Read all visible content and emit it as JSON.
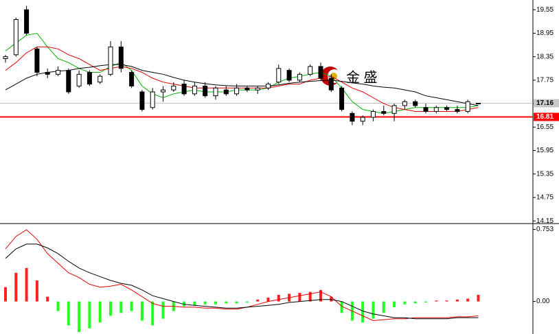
{
  "chart_data": [
    {
      "type": "candlestick",
      "watermark": "金 盛",
      "ylim": [
        14.1,
        19.8
      ],
      "yticks": [
        19.55,
        18.95,
        18.35,
        17.75,
        17.15,
        16.55,
        15.95,
        15.35,
        14.75,
        14.15
      ],
      "open": [
        18.3,
        18.4,
        19.55,
        18.55,
        17.95,
        17.9,
        18.0,
        17.6,
        17.95,
        17.7,
        17.9,
        18.6,
        17.95,
        17.45,
        17.05,
        17.45,
        17.5,
        17.65,
        17.4,
        17.6,
        17.35,
        17.5,
        17.4,
        17.55,
        17.5,
        17.55,
        17.7,
        18.0,
        17.75,
        17.9,
        18.1,
        17.8,
        17.55,
        16.9,
        16.7,
        16.8,
        16.95,
        16.9,
        17.1,
        17.2,
        17.05,
        16.95,
        17.05,
        17.0,
        16.95,
        17.16
      ],
      "high": [
        18.4,
        19.35,
        19.65,
        18.6,
        18.05,
        18.1,
        18.05,
        18.0,
        18.0,
        17.9,
        18.75,
        18.75,
        18.0,
        17.5,
        17.55,
        17.6,
        17.7,
        17.75,
        17.7,
        17.7,
        17.6,
        17.6,
        17.65,
        17.6,
        17.6,
        17.7,
        18.15,
        18.05,
        17.95,
        18.15,
        18.2,
        17.9,
        17.6,
        16.95,
        16.85,
        17.0,
        17.1,
        17.15,
        17.25,
        17.25,
        17.15,
        17.1,
        17.1,
        17.1,
        17.25,
        17.16
      ],
      "low": [
        18.2,
        18.35,
        18.9,
        17.85,
        17.8,
        17.85,
        17.4,
        17.55,
        17.6,
        17.65,
        17.85,
        17.95,
        17.55,
        16.95,
        17.0,
        17.2,
        17.45,
        17.35,
        17.35,
        17.3,
        17.25,
        17.35,
        17.35,
        17.45,
        17.4,
        17.5,
        17.65,
        17.7,
        17.7,
        17.85,
        17.75,
        17.45,
        16.95,
        16.6,
        16.6,
        16.7,
        16.85,
        16.7,
        17.0,
        17.05,
        16.9,
        16.9,
        16.95,
        16.9,
        16.9,
        17.16
      ],
      "close": [
        18.35,
        19.3,
        18.95,
        17.95,
        17.9,
        18.0,
        17.45,
        17.9,
        17.65,
        17.85,
        18.6,
        18.05,
        17.6,
        17.0,
        17.45,
        17.5,
        17.6,
        17.4,
        17.6,
        17.35,
        17.55,
        17.4,
        17.55,
        17.5,
        17.55,
        17.65,
        18.05,
        17.75,
        17.9,
        18.1,
        17.8,
        17.5,
        17.0,
        16.7,
        16.8,
        16.95,
        16.9,
        17.1,
        17.2,
        17.1,
        16.95,
        17.05,
        17.0,
        16.95,
        17.2,
        17.16
      ],
      "series": [
        {
          "color": "#00b000",
          "values": [
            18.5,
            18.7,
            18.9,
            18.95,
            18.6,
            18.3,
            18.2,
            18.05,
            17.95,
            17.95,
            18.1,
            18.2,
            18.0,
            17.6,
            17.4,
            17.3,
            17.4,
            17.45,
            17.5,
            17.45,
            17.45,
            17.45,
            17.5,
            17.5,
            17.5,
            17.55,
            17.7,
            17.8,
            17.85,
            17.9,
            17.95,
            17.85,
            17.55,
            17.2,
            17.0,
            16.95,
            16.9,
            16.95,
            17.0,
            17.05,
            17.05,
            17.05,
            17.05,
            17.05,
            17.05,
            17.1
          ]
        },
        {
          "color": "#e00000",
          "values": [
            18.0,
            18.2,
            18.45,
            18.6,
            18.6,
            18.55,
            18.4,
            18.3,
            18.15,
            18.0,
            18.05,
            18.1,
            18.05,
            17.95,
            17.8,
            17.7,
            17.65,
            17.6,
            17.55,
            17.55,
            17.55,
            17.55,
            17.55,
            17.55,
            17.55,
            17.55,
            17.6,
            17.65,
            17.65,
            17.75,
            17.8,
            17.85,
            17.7,
            17.55,
            17.45,
            17.3,
            17.15,
            17.05,
            17.0,
            16.95,
            16.95,
            16.95,
            16.95,
            16.95,
            17.0,
            17.05
          ]
        },
        {
          "color": "#000000",
          "values": [
            17.5,
            17.65,
            17.8,
            17.9,
            17.95,
            17.98,
            18.0,
            18.05,
            18.08,
            18.12,
            18.15,
            18.15,
            18.1,
            18.0,
            17.95,
            17.9,
            17.82,
            17.75,
            17.7,
            17.66,
            17.63,
            17.61,
            17.6,
            17.6,
            17.6,
            17.6,
            17.63,
            17.67,
            17.7,
            17.72,
            17.74,
            17.75,
            17.72,
            17.68,
            17.65,
            17.6,
            17.57,
            17.55,
            17.5,
            17.45,
            17.35,
            17.3,
            17.25,
            17.2,
            17.15,
            17.1
          ]
        }
      ],
      "up_color": "#ffffff",
      "down_color": "#000000",
      "price_labels": [
        {
          "value": 17.16,
          "color": "#c8c8c8",
          "line_color": "#c0c0c0",
          "text_color": "#000000"
        },
        {
          "value": 16.81,
          "color": "#ff0000",
          "line_color": "#ff0000",
          "text_color": "#ffffff"
        }
      ]
    },
    {
      "type": "macd",
      "ylim": [
        -0.34,
        0.8
      ],
      "yticks": [
        0.753,
        {
          "value": 0,
          "label": "0.00"
        }
      ],
      "histogram": [
        0.15,
        0.3,
        0.35,
        0.22,
        0.05,
        -0.1,
        -0.25,
        -0.32,
        -0.28,
        -0.22,
        -0.15,
        -0.12,
        -0.1,
        -0.2,
        -0.25,
        -0.18,
        -0.1,
        -0.05,
        -0.04,
        -0.03,
        -0.03,
        -0.02,
        -0.02,
        -0.01,
        0.02,
        0.04,
        0.07,
        0.08,
        0.09,
        0.1,
        0.12,
        0.05,
        -0.12,
        -0.2,
        -0.22,
        -0.18,
        -0.12,
        -0.06,
        -0.03,
        -0.02,
        -0.01,
        0.01,
        0.01,
        0.02,
        0.03,
        0.07
      ],
      "positive_color": "#ff2020",
      "negative_color": "#20ff20",
      "series": [
        {
          "color": "#e00000",
          "values": [
            0.55,
            0.68,
            0.75,
            0.65,
            0.5,
            0.4,
            0.3,
            0.25,
            0.18,
            0.15,
            0.16,
            0.18,
            0.12,
            0.05,
            -0.02,
            -0.05,
            -0.05,
            -0.06,
            -0.06,
            -0.07,
            -0.07,
            -0.08,
            -0.08,
            -0.06,
            -0.03,
            0.0,
            0.02,
            0.04,
            0.06,
            0.08,
            0.1,
            0.05,
            -0.05,
            -0.1,
            -0.15,
            -0.2,
            -0.19,
            -0.18,
            -0.18,
            -0.17,
            -0.17,
            -0.17,
            -0.17,
            -0.16,
            -0.16,
            -0.15
          ]
        },
        {
          "color": "#000000",
          "values": [
            0.45,
            0.55,
            0.6,
            0.6,
            0.56,
            0.5,
            0.42,
            0.35,
            0.3,
            0.26,
            0.22,
            0.19,
            0.17,
            0.12,
            0.06,
            0.03,
            0.0,
            -0.03,
            -0.04,
            -0.05,
            -0.06,
            -0.07,
            -0.07,
            -0.06,
            -0.05,
            -0.04,
            -0.03,
            -0.01,
            0.0,
            0.01,
            0.02,
            0.02,
            0.0,
            -0.05,
            -0.1,
            -0.13,
            -0.15,
            -0.17,
            -0.17,
            -0.18,
            -0.18,
            -0.18,
            -0.18,
            -0.17,
            -0.17,
            -0.17
          ]
        }
      ]
    }
  ]
}
